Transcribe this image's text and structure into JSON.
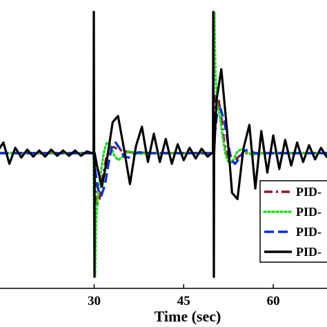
{
  "chart_data": {
    "type": "line",
    "xlabel": "Time (sec)",
    "ylabel": "",
    "title": "",
    "xlim": [
      14,
      69
    ],
    "ylim": [
      -1.4,
      1.6
    ],
    "x_ticks": [
      30,
      45,
      60
    ],
    "grid": false,
    "legend_position": "bottom-right",
    "series": [
      {
        "name": "PID-",
        "color": "#8b1a2b",
        "dash": "dashdot",
        "x": [
          14,
          20,
          25,
          29.9,
          30.0,
          30.4,
          30.9,
          31.4,
          32.0,
          32.6,
          33.3,
          34.0,
          36,
          40,
          45,
          49.9,
          50.0,
          50.3,
          50.8,
          51.3,
          51.8,
          52.4,
          53.0,
          53.7,
          54.4,
          55.5,
          57,
          60,
          65,
          69
        ],
        "y": [
          0.0,
          0.0,
          0.0,
          0.0,
          -0.18,
          -0.6,
          -0.52,
          -0.28,
          -0.06,
          0.05,
          0.07,
          0.04,
          0.01,
          0.0,
          0.0,
          0.0,
          0.25,
          0.68,
          0.62,
          0.4,
          0.12,
          -0.04,
          -0.1,
          -0.07,
          -0.03,
          0.0,
          0.0,
          0.0,
          0.0,
          0.0
        ]
      },
      {
        "name": "PID-",
        "color": "#1fd61f",
        "dash": "dotted",
        "x": [
          14,
          20,
          25,
          29.9,
          30.0,
          30.15,
          30.3,
          30.6,
          31.1,
          31.6,
          32.1,
          32.7,
          33.3,
          34.0,
          34.8,
          35.6,
          36.5,
          37.5,
          39,
          42,
          45,
          49.9,
          50.0,
          50.15,
          50.3,
          50.6,
          51.0,
          51.5,
          52.0,
          52.6,
          53.3,
          54.0,
          54.8,
          55.6,
          56.5,
          57.5,
          59,
          62,
          65,
          69
        ],
        "y": [
          0.0,
          0.0,
          0.0,
          0.0,
          -0.9,
          -1.4,
          -0.8,
          -0.45,
          -0.22,
          0.0,
          0.12,
          0.1,
          -0.02,
          -0.08,
          -0.04,
          0.02,
          0.01,
          -0.01,
          0.0,
          0.0,
          0.0,
          0.0,
          1.1,
          1.6,
          0.9,
          0.55,
          0.45,
          0.2,
          -0.02,
          -0.12,
          -0.08,
          0.02,
          0.05,
          0.01,
          -0.02,
          0.0,
          0.0,
          0.0,
          0.0,
          0.0
        ]
      },
      {
        "name": "PID-",
        "color": "#0a2fd6",
        "dash": "dashed",
        "x": [
          14,
          20,
          25,
          29.9,
          30.0,
          30.6,
          31.2,
          31.8,
          32.4,
          33.0,
          33.6,
          34.3,
          35.0,
          35.8,
          36.6,
          37.5,
          39,
          42,
          45,
          49.9,
          50.0,
          50.6,
          51.2,
          51.8,
          52.4,
          53.0,
          53.6,
          54.3,
          55.0,
          55.8,
          56.6,
          57.5,
          59,
          62,
          65,
          69
        ],
        "y": [
          0.0,
          0.0,
          0.0,
          0.0,
          -0.1,
          -0.4,
          -0.48,
          -0.36,
          -0.12,
          0.08,
          0.12,
          0.05,
          -0.04,
          -0.05,
          -0.01,
          0.01,
          0.0,
          0.0,
          0.0,
          0.0,
          0.1,
          0.45,
          0.5,
          0.36,
          0.12,
          -0.08,
          -0.12,
          -0.06,
          0.02,
          0.04,
          0.01,
          -0.01,
          0.0,
          0.0,
          0.0,
          0.0
        ]
      },
      {
        "name": "PID-",
        "color": "#000000",
        "dash": "solid",
        "x": [
          14,
          14.8,
          15.8,
          16.8,
          17.8,
          18.8,
          19.8,
          20.8,
          21.8,
          22.8,
          23.8,
          24.8,
          25.8,
          26.8,
          27.8,
          28.8,
          29.6,
          29.9,
          29.95,
          30.0,
          30.05,
          30.1,
          30.5,
          31.3,
          32.2,
          33.1,
          34.0,
          35.0,
          36.0,
          37.0,
          38.0,
          39.0,
          40.0,
          41.0,
          42.0,
          43.0,
          44.0,
          45.0,
          46.0,
          47.0,
          48.0,
          49.0,
          49.7,
          49.9,
          49.95,
          50.0,
          50.05,
          50.1,
          50.5,
          51.3,
          52.2,
          53.1,
          54.0,
          55.0,
          56.0,
          57.0,
          58.0,
          59.0,
          60.0,
          61.0,
          62.0,
          63.0,
          64.0,
          65.0,
          66.0,
          67.0,
          68.0,
          69.0
        ],
        "y": [
          0.04,
          0.12,
          -0.12,
          0.06,
          -0.05,
          0.04,
          -0.04,
          0.03,
          -0.04,
          0.04,
          -0.03,
          0.03,
          -0.03,
          0.03,
          -0.03,
          0.02,
          0.0,
          0.0,
          1.6,
          0.0,
          -1.4,
          0.0,
          -0.15,
          -0.38,
          -0.05,
          0.35,
          0.42,
          0.05,
          -0.35,
          0.08,
          0.3,
          -0.1,
          0.22,
          -0.1,
          0.16,
          -0.12,
          0.1,
          -0.08,
          0.06,
          -0.06,
          0.05,
          -0.04,
          0.0,
          0.0,
          1.6,
          0.0,
          -1.4,
          0.0,
          0.6,
          0.95,
          0.3,
          -0.45,
          -0.52,
          0.05,
          0.32,
          -0.4,
          0.25,
          -0.22,
          0.2,
          -0.18,
          0.15,
          -0.14,
          0.12,
          -0.1,
          0.09,
          -0.07,
          0.06,
          -0.05
        ]
      }
    ]
  }
}
